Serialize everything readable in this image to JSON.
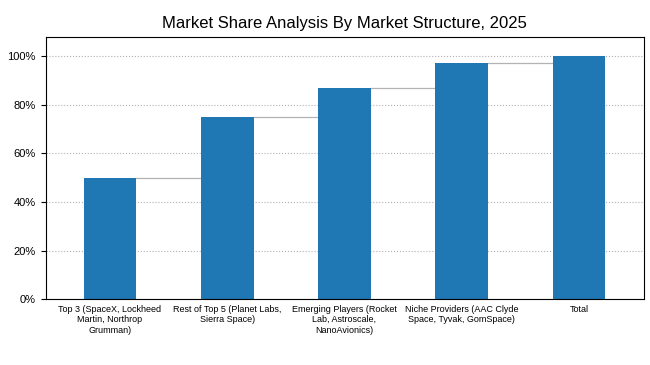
{
  "chart_data": {
    "type": "bar",
    "title": "Market Share Analysis By Market Structure, 2025",
    "categories": [
      "Top 3 (SpaceX, Lockheed\nMartin, Northrop\nGrumman)",
      "Rest of Top 5 (Planet Labs,\nSierra Space)",
      "Emerging Players (Rocket\nLab, Astroscale,\nNanoAvionics)",
      "Niche Providers (AAC Clyde\nSpace, Tyvak, GomSpace)",
      "Total"
    ],
    "values": [
      50,
      75,
      87,
      97,
      100
    ],
    "ylim": [
      0,
      108
    ],
    "yticks": [
      {
        "value": 0,
        "label": "0%"
      },
      {
        "value": 20,
        "label": "20%"
      },
      {
        "value": 40,
        "label": "40%"
      },
      {
        "value": 60,
        "label": "60%"
      },
      {
        "value": 80,
        "label": "80%"
      },
      {
        "value": 100,
        "label": "100%"
      }
    ],
    "grid": true
  }
}
